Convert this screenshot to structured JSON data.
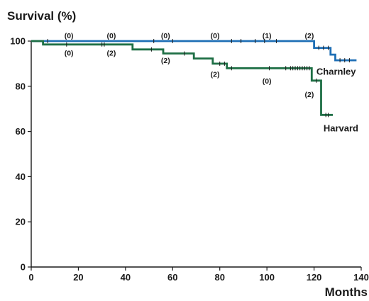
{
  "chart_data": {
    "type": "line",
    "step": true,
    "ylabel": "Survival (%)",
    "xlabel": "Months",
    "xlim": [
      0,
      140
    ],
    "ylim": [
      0,
      100
    ],
    "xticks": [
      0,
      20,
      40,
      60,
      80,
      100,
      120,
      140
    ],
    "yticks": [
      0,
      20,
      40,
      60,
      80,
      100
    ],
    "grid": false,
    "legend": "inline labels at line ends",
    "series": [
      {
        "name": "Charnley",
        "color": "#1f6fb5",
        "points": [
          [
            0,
            100
          ],
          [
            120,
            100
          ],
          [
            120,
            97
          ],
          [
            127,
            97
          ],
          [
            127,
            94
          ],
          [
            129,
            94
          ],
          [
            129,
            91.5
          ],
          [
            138,
            91.5
          ]
        ],
        "censored": [
          [
            7,
            100
          ],
          [
            52,
            100
          ],
          [
            60,
            100
          ],
          [
            85,
            100
          ],
          [
            89,
            100
          ],
          [
            95,
            100
          ],
          [
            99,
            100
          ],
          [
            104,
            100
          ],
          [
            122,
            97
          ],
          [
            124,
            97
          ],
          [
            126,
            97
          ],
          [
            131,
            91.5
          ],
          [
            133,
            91.5
          ],
          [
            135,
            91.5
          ]
        ]
      },
      {
        "name": "Harvard",
        "color": "#1e6f45",
        "points": [
          [
            0,
            100
          ],
          [
            5,
            100
          ],
          [
            5,
            98.5
          ],
          [
            43,
            98.5
          ],
          [
            43,
            96.3
          ],
          [
            56,
            96.3
          ],
          [
            56,
            94.5
          ],
          [
            69,
            94.5
          ],
          [
            69,
            92.3
          ],
          [
            77,
            92.3
          ],
          [
            77,
            90
          ],
          [
            83,
            90
          ],
          [
            83,
            88
          ],
          [
            119,
            88
          ],
          [
            119,
            82.5
          ],
          [
            123,
            82.5
          ],
          [
            123,
            67.3
          ],
          [
            128,
            67.3
          ]
        ],
        "censored": [
          [
            15,
            98.5
          ],
          [
            30,
            98.5
          ],
          [
            31,
            98.5
          ],
          [
            51,
            96.3
          ],
          [
            65,
            94.5
          ],
          [
            80,
            90
          ],
          [
            82,
            90
          ],
          [
            85,
            88
          ],
          [
            101,
            88
          ],
          [
            108,
            88
          ],
          [
            110,
            88
          ],
          [
            111,
            88
          ],
          [
            112,
            88
          ],
          [
            113,
            88
          ],
          [
            114,
            88
          ],
          [
            115,
            88
          ],
          [
            116,
            88
          ],
          [
            117,
            88
          ],
          [
            118,
            88
          ],
          [
            121,
            82.5
          ],
          [
            125,
            67.3
          ],
          [
            126,
            67.3
          ]
        ]
      }
    ],
    "annotations": [
      {
        "text": "(0)",
        "x": 16,
        "y": 102.5
      },
      {
        "text": "(0)",
        "x": 34,
        "y": 102.5
      },
      {
        "text": "(0)",
        "x": 57,
        "y": 102.5
      },
      {
        "text": "(0)",
        "x": 78,
        "y": 102.5
      },
      {
        "text": "(1)",
        "x": 100,
        "y": 102.5
      },
      {
        "text": "(2)",
        "x": 118,
        "y": 102.5
      },
      {
        "text": "(0)",
        "x": 16,
        "y": 94.8
      },
      {
        "text": "(2)",
        "x": 34,
        "y": 94.8
      },
      {
        "text": "(2)",
        "x": 57,
        "y": 91.5
      },
      {
        "text": "(2)",
        "x": 78,
        "y": 85.5
      },
      {
        "text": "(0)",
        "x": 100,
        "y": 82.5
      },
      {
        "text": "(2)",
        "x": 118,
        "y": 76.5
      }
    ],
    "series_labels": [
      {
        "text": "Charnley",
        "x": 121,
        "y": 86.5
      },
      {
        "text": "Harvard",
        "x": 124,
        "y": 61.5
      }
    ]
  }
}
